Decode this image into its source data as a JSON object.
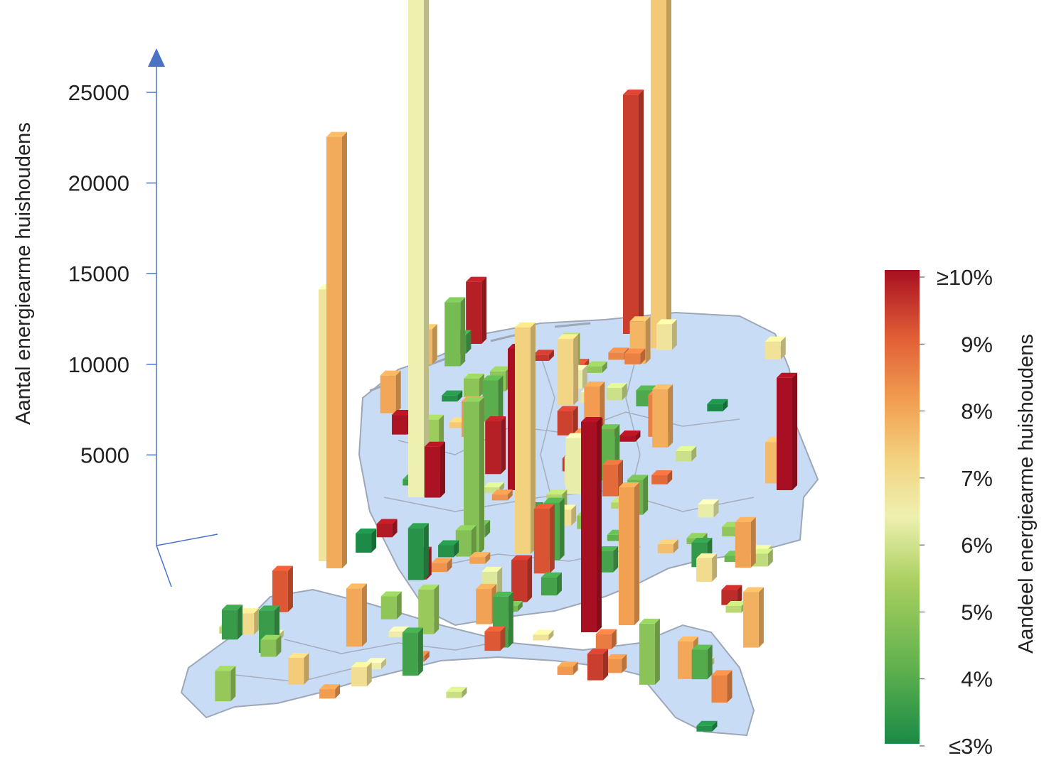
{
  "chart_data": {
    "type": "bar3d-map",
    "y_axis": {
      "label": "Aantal energiearme huishoudens",
      "ticks": [
        5000,
        10000,
        15000,
        20000,
        25000
      ],
      "range": [
        0,
        27000
      ]
    },
    "colorbar": {
      "label": "Aandeel energiearme huishoudens",
      "ticks": [
        "≥10%",
        "9%",
        "8%",
        "7%",
        "6%",
        "5%",
        "4%",
        "≤3%"
      ],
      "colors": [
        "#1a8a47",
        "#5fb14d",
        "#a8cf5f",
        "#eef0b0",
        "#f3d27f",
        "#f2a052",
        "#e05d35",
        "#a90f22"
      ]
    },
    "tall_bars": [
      {
        "value": 29500,
        "share_pct": 6.0
      },
      {
        "value": 23800,
        "share_pct": 7.8
      },
      {
        "value": 20200,
        "share_pct": 7.2
      },
      {
        "value": 15000,
        "share_pct": 6.4
      },
      {
        "value": 12500,
        "share_pct": 7.0
      },
      {
        "value": 13200,
        "share_pct": 9.4
      },
      {
        "value": 11600,
        "share_pct": 10.0
      },
      {
        "value": 8400,
        "share_pct": 4.5
      },
      {
        "value": 7800,
        "share_pct": 10.0
      },
      {
        "value": 7600,
        "share_pct": 8.0
      },
      {
        "value": 6200,
        "share_pct": 10.0
      }
    ]
  }
}
